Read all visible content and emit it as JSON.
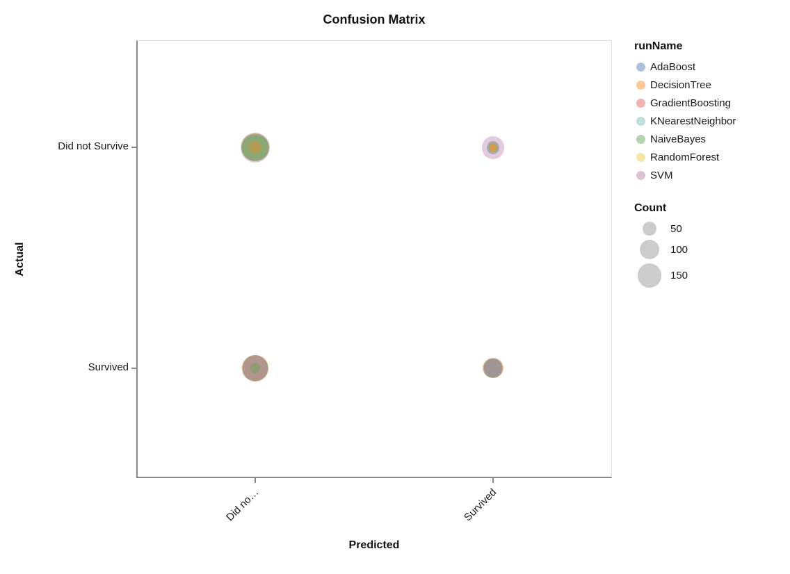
{
  "chart_data": {
    "type": "scatter",
    "subtype": "bubble-confusion-matrix",
    "title": "Confusion Matrix",
    "xlabel": "Predicted",
    "ylabel": "Actual",
    "x_categories": [
      "Did not Survive",
      "Survived"
    ],
    "x_tick_labels": [
      "Did no…",
      "Survived"
    ],
    "y_categories": [
      "Did not Survive",
      "Survived"
    ],
    "grid": false,
    "legend_position": "right",
    "color_legend_title": "runName",
    "size_legend_title": "Count",
    "size_legend_values": [
      "50",
      "100",
      "150"
    ],
    "size_legend_color": "#cccccc",
    "mark_opacity": 0.38,
    "legend_swatch_opacity": 0.45,
    "axis_domain_color": "#888888",
    "view_border_color": "#dddddd",
    "runs": [
      {
        "name": "AdaBoost",
        "color": "#4c78a8"
      },
      {
        "name": "DecisionTree",
        "color": "#f58518"
      },
      {
        "name": "GradientBoosting",
        "color": "#e45756"
      },
      {
        "name": "KNearestNeighbor",
        "color": "#72b7b2"
      },
      {
        "name": "NaiveBayes",
        "color": "#54a24b"
      },
      {
        "name": "RandomForest",
        "color": "#eeca3b"
      },
      {
        "name": "SVM",
        "color": "#b279a2"
      }
    ],
    "cells": [
      {
        "actual": "Did not Survive",
        "predicted": "Did not Survive",
        "counts": {
          "AdaBoost": 200,
          "DecisionTree": 40,
          "GradientBoosting": 200,
          "KNearestNeighbor": 195,
          "NaiveBayes": 175,
          "RandomForest": 200,
          "SVM": 230
        }
      },
      {
        "actual": "Did not Survive",
        "predicted": "Survived",
        "counts": {
          "AdaBoost": 45,
          "DecisionTree": 20,
          "GradientBoosting": 20,
          "KNearestNeighbor": 25,
          "NaiveBayes": 22,
          "RandomForest": 20,
          "SVM": 135
        }
      },
      {
        "actual": "Survived",
        "predicted": "Did not Survive",
        "counts": {
          "AdaBoost": 180,
          "DecisionTree": 170,
          "GradientBoosting": 185,
          "KNearestNeighbor": 170,
          "NaiveBayes": 28,
          "RandomForest": 175,
          "SVM": 160
        }
      },
      {
        "actual": "Survived",
        "predicted": "Survived",
        "counts": {
          "AdaBoost": 90,
          "DecisionTree": 92,
          "GradientBoosting": 106,
          "KNearestNeighbor": 90,
          "NaiveBayes": 95,
          "RandomForest": 92,
          "SVM": 88
        }
      }
    ]
  }
}
